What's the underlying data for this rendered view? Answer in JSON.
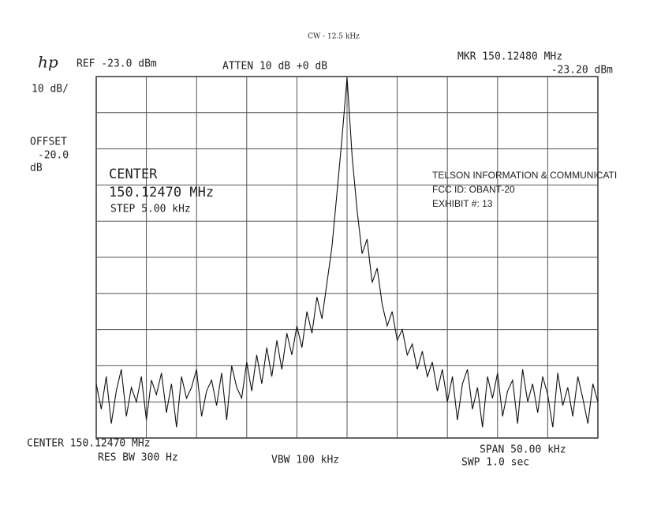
{
  "chart_data": {
    "type": "line",
    "title": "CW - 12.5 kHz",
    "annotations": [
      "hp",
      "REF -23.0 dBm",
      "ATTEN 10 dB +0 dB",
      "MKR 150.12480 MHz",
      "-23.20 dBm",
      "10 dB/",
      "OFFSET",
      "-20.0",
      "dB",
      "CENTER",
      "150.12470 MHz",
      "STEP 5.00 kHz",
      "TELSON INFORMATION & COMMUNICATI",
      "FCC ID:  OBANT-20",
      "EXHIBIT #:  13",
      "CENTER 150.12470 MHz",
      "RES BW 300 Hz",
      "VBW 100 kHz",
      "SPAN 50.00 kHz",
      "SWP 1.0  sec"
    ],
    "xlim": [
      150.0997,
      150.1497
    ],
    "ylim": [
      -123,
      -23
    ],
    "color": "#111111",
    "grid": true,
    "x": [
      150.0997,
      150.1002,
      150.1007,
      150.1012,
      150.1017,
      150.1022,
      150.1027,
      150.1032,
      150.1037,
      150.1042,
      150.1047,
      150.1052,
      150.1057,
      150.1062,
      150.1067,
      150.1072,
      150.1077,
      150.1082,
      150.1087,
      150.1092,
      150.1097,
      150.1102,
      150.1107,
      150.1112,
      150.1117,
      150.1122,
      150.1127,
      150.1132,
      150.1137,
      150.1142,
      150.1147,
      150.1152,
      150.1157,
      150.1162,
      150.1167,
      150.1172,
      150.1177,
      150.1182,
      150.1187,
      150.1192,
      150.1197,
      150.1202,
      150.1207,
      150.1212,
      150.1217,
      150.1222,
      150.1227,
      150.1232,
      150.1237,
      150.1242,
      150.1247,
      150.1252,
      150.1257,
      150.1262,
      150.1267,
      150.1272,
      150.1277,
      150.1282,
      150.1287,
      150.1292,
      150.1297,
      150.1302,
      150.1307,
      150.1312,
      150.1317,
      150.1322,
      150.1327,
      150.1332,
      150.1337,
      150.1342,
      150.1347,
      150.1352,
      150.1357,
      150.1362,
      150.1367,
      150.1372,
      150.1377,
      150.1382,
      150.1387,
      150.1392,
      150.1397,
      150.1402,
      150.1407,
      150.1412,
      150.1417,
      150.1422,
      150.1427,
      150.1432,
      150.1437,
      150.1442,
      150.1447,
      150.1452,
      150.1457,
      150.1462,
      150.1467,
      150.1472,
      150.1477,
      150.1482,
      150.1487,
      150.1492,
      150.1497
    ],
    "values": [
      -108,
      -115,
      -106,
      -119,
      -110,
      -104,
      -117,
      -109,
      -113,
      -106,
      -118,
      -107,
      -111,
      -105,
      -116,
      -108,
      -120,
      -106,
      -112,
      -109,
      -104,
      -117,
      -110,
      -107,
      -114,
      -105,
      -118,
      -103,
      -109,
      -112,
      -102,
      -110,
      -100,
      -108,
      -98,
      -106,
      -96,
      -104,
      -94,
      -100,
      -92,
      -98,
      -88,
      -94,
      -84,
      -90,
      -80,
      -70,
      -55,
      -40,
      -23.2,
      -45,
      -60,
      -72,
      -68,
      -80,
      -76,
      -86,
      -92,
      -88,
      -96,
      -93,
      -100,
      -97,
      -104,
      -99,
      -106,
      -102,
      -110,
      -104,
      -113,
      -106,
      -118,
      -108,
      -104,
      -115,
      -109,
      -120,
      -106,
      -112,
      -105,
      -117,
      -110,
      -107,
      -119,
      -104,
      -113,
      -108,
      -116,
      -106,
      -111,
      -120,
      -105,
      -114,
      -109,
      -117,
      -106,
      -112,
      -119,
      -108,
      -113
    ]
  }
}
